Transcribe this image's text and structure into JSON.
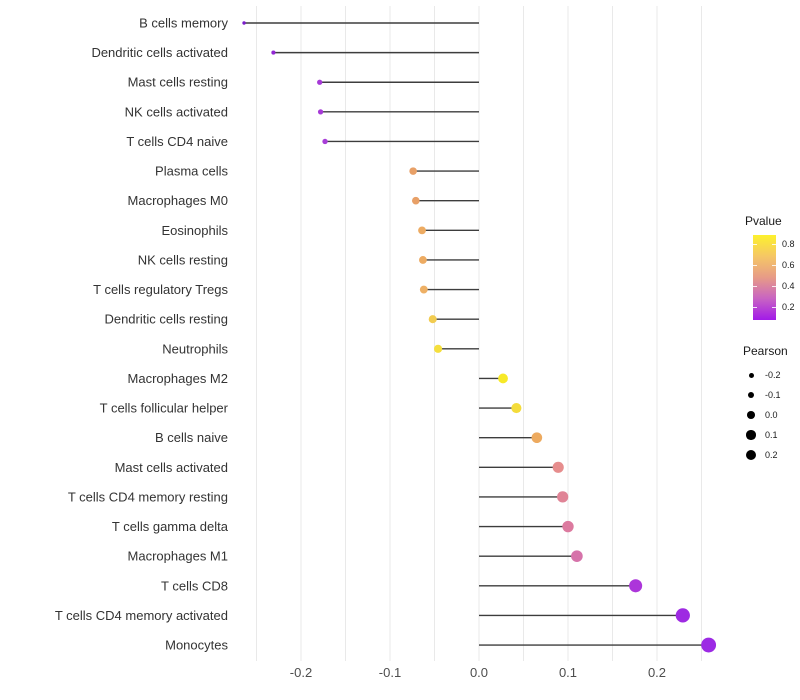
{
  "chart_data": {
    "type": "scatter",
    "subtype": "lollipop",
    "orientation": "horizontal",
    "title": "",
    "xlabel": "",
    "ylabel": "",
    "x_axis": {
      "ticks": [
        -0.2,
        -0.1,
        0.0,
        0.1,
        0.2
      ],
      "tick_labels": [
        "-0.2",
        "-0.1",
        "0.0",
        "0.1",
        "0.2"
      ],
      "minor_step": 0.05,
      "range": [
        -0.29,
        0.285
      ],
      "grid": true
    },
    "points": [
      {
        "label": "B cells memory",
        "pearson": -0.264,
        "color": "#7b1dcb"
      },
      {
        "label": "Dendritic cells activated",
        "pearson": -0.231,
        "color": "#9227d3"
      },
      {
        "label": "Mast cells resting",
        "pearson": -0.179,
        "color": "#a63ad7"
      },
      {
        "label": "NK cells activated",
        "pearson": -0.178,
        "color": "#a63ad7"
      },
      {
        "label": "T cells CD4 naive",
        "pearson": -0.173,
        "color": "#a83ed8"
      },
      {
        "label": "Plasma cells",
        "pearson": -0.074,
        "color": "#e8a067"
      },
      {
        "label": "Macrophages M0",
        "pearson": -0.071,
        "color": "#e8a067"
      },
      {
        "label": "Eosinophils",
        "pearson": -0.064,
        "color": "#edab62"
      },
      {
        "label": "NK cells resting",
        "pearson": -0.063,
        "color": "#edab62"
      },
      {
        "label": "T cells regulatory  Tregs",
        "pearson": -0.062,
        "color": "#eeb065"
      },
      {
        "label": "Dendritic cells resting",
        "pearson": -0.052,
        "color": "#f2cc50"
      },
      {
        "label": "Neutrophils",
        "pearson": -0.046,
        "color": "#f5df3d"
      },
      {
        "label": "Macrophages M2",
        "pearson": 0.027,
        "color": "#f7e928"
      },
      {
        "label": "T cells follicular helper",
        "pearson": 0.042,
        "color": "#f4dc3b"
      },
      {
        "label": "B cells naive",
        "pearson": 0.065,
        "color": "#edaa5f"
      },
      {
        "label": "Mast cells activated",
        "pearson": 0.089,
        "color": "#e68d8d"
      },
      {
        "label": "T cells CD4 memory resting",
        "pearson": 0.094,
        "color": "#e08496"
      },
      {
        "label": "T cells gamma delta",
        "pearson": 0.1,
        "color": "#dc7a9f"
      },
      {
        "label": "Macrophages M1",
        "pearson": 0.11,
        "color": "#d673aa"
      },
      {
        "label": "T cells CD8",
        "pearson": 0.176,
        "color": "#ac35da"
      },
      {
        "label": "T cells CD4 memory activated",
        "pearson": 0.229,
        "color": "#9e2ae2"
      },
      {
        "label": "Monocytes",
        "pearson": 0.258,
        "color": "#9c2ae4"
      }
    ],
    "legends": {
      "pvalue": {
        "title": "Pvalue",
        "ticks": [
          0.8,
          0.6,
          0.4,
          0.2
        ],
        "tick_labels": [
          "0.8",
          "0.6",
          "0.4",
          "0.2"
        ],
        "bar_range": [
          0.075,
          0.89
        ],
        "gradient_bottom_to_top": [
          "#a21ae8",
          "#c863c3",
          "#e79b87",
          "#f5c765",
          "#fdf12d"
        ]
      },
      "pearson": {
        "title": "Pearson",
        "sizes": [
          -0.2,
          -0.1,
          0.0,
          0.1,
          0.2
        ],
        "size_labels": [
          "-0.2",
          "-0.1",
          "0.0",
          "0.1",
          "0.2"
        ],
        "dot_color": "#000000"
      }
    },
    "stem_color": "#3d3d3d",
    "grid_color": "#e9e9e9",
    "axis_text_color": "#4d4d4d",
    "category_text_color": "#333333"
  }
}
